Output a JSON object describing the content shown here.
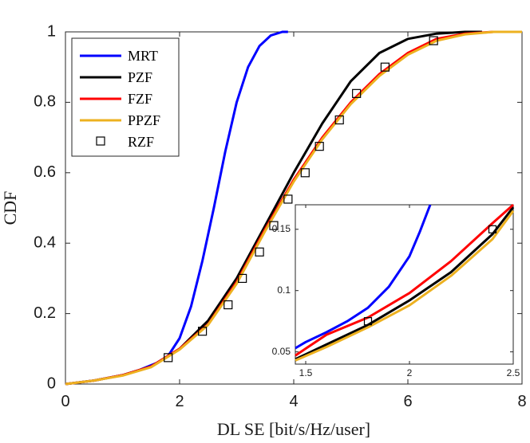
{
  "chart_data": {
    "type": "line",
    "xlabel": "DL SE [bit/s/Hz/user]",
    "ylabel": "CDF",
    "xlim": [
      0,
      8
    ],
    "ylim": [
      0,
      1
    ],
    "xticks": [
      "0",
      "2",
      "4",
      "6",
      "8"
    ],
    "yticks": [
      "0",
      "0.2",
      "0.4",
      "0.6",
      "0.8",
      "1"
    ],
    "grid": false,
    "legend_position": "top-left",
    "series": [
      {
        "name": "MRT",
        "color": "#0000ff",
        "x": [
          0,
          0.5,
          1.0,
          1.3,
          1.6,
          1.8,
          2.0,
          2.2,
          2.4,
          2.6,
          2.8,
          3.0,
          3.2,
          3.4,
          3.6,
          3.8,
          3.9
        ],
        "y": [
          0,
          0.01,
          0.025,
          0.04,
          0.06,
          0.08,
          0.13,
          0.22,
          0.35,
          0.5,
          0.66,
          0.8,
          0.9,
          0.96,
          0.99,
          1.0,
          1.0
        ]
      },
      {
        "name": "PZF",
        "color": "#000000",
        "x": [
          0,
          0.5,
          1.0,
          1.5,
          2.0,
          2.5,
          3.0,
          3.5,
          4.0,
          4.5,
          5.0,
          5.5,
          6.0,
          6.5,
          7.0,
          7.3
        ],
        "y": [
          0,
          0.01,
          0.025,
          0.05,
          0.1,
          0.18,
          0.3,
          0.45,
          0.6,
          0.74,
          0.86,
          0.94,
          0.98,
          0.995,
          1.0,
          1.0
        ]
      },
      {
        "name": "FZF",
        "color": "#ff0000",
        "x": [
          0,
          0.5,
          1.0,
          1.5,
          2.0,
          2.5,
          3.0,
          3.5,
          4.0,
          4.5,
          5.0,
          5.5,
          6.0,
          6.5,
          7.0,
          7.5,
          8.0
        ],
        "y": [
          0,
          0.01,
          0.025,
          0.05,
          0.1,
          0.17,
          0.29,
          0.44,
          0.58,
          0.7,
          0.8,
          0.88,
          0.94,
          0.98,
          0.995,
          1.0,
          1.0
        ]
      },
      {
        "name": "PPZF",
        "color": "#edb120",
        "x": [
          0,
          0.5,
          1.0,
          1.5,
          2.0,
          2.5,
          3.0,
          3.5,
          4.0,
          4.5,
          5.0,
          5.5,
          6.0,
          6.5,
          7.0,
          7.5,
          8.0
        ],
        "y": [
          0,
          0.01,
          0.024,
          0.048,
          0.098,
          0.168,
          0.285,
          0.435,
          0.575,
          0.695,
          0.795,
          0.875,
          0.935,
          0.975,
          0.993,
          1.0,
          1.0
        ]
      }
    ],
    "markers": {
      "name": "RZF",
      "symbol": "square",
      "color": "#000000",
      "points": [
        [
          1.8,
          0.075
        ],
        [
          2.4,
          0.15
        ],
        [
          2.85,
          0.225
        ],
        [
          3.1,
          0.3
        ],
        [
          3.4,
          0.375
        ],
        [
          3.65,
          0.45
        ],
        [
          3.9,
          0.525
        ],
        [
          4.2,
          0.6
        ],
        [
          4.45,
          0.675
        ],
        [
          4.8,
          0.75
        ],
        [
          5.1,
          0.825
        ],
        [
          5.6,
          0.9
        ],
        [
          6.45,
          0.975
        ]
      ]
    },
    "inset": {
      "xlim": [
        1.45,
        2.5
      ],
      "ylim": [
        0.04,
        0.17
      ],
      "xticks": [
        "1.5",
        "2",
        "2.5"
      ],
      "yticks": [
        "0.05",
        "0.1",
        "0.15"
      ],
      "series": [
        {
          "name": "MRT",
          "color": "#0000ff",
          "x": [
            1.45,
            1.5,
            1.6,
            1.7,
            1.8,
            1.9,
            2.0,
            2.05,
            2.1
          ],
          "y": [
            0.053,
            0.058,
            0.066,
            0.075,
            0.086,
            0.103,
            0.128,
            0.148,
            0.17
          ]
        },
        {
          "name": "PZF",
          "color": "#000000",
          "x": [
            1.45,
            1.6,
            1.8,
            2.0,
            2.2,
            2.4,
            2.5
          ],
          "y": [
            0.044,
            0.056,
            0.072,
            0.092,
            0.115,
            0.146,
            0.168
          ]
        },
        {
          "name": "FZF",
          "color": "#ff0000",
          "x": [
            1.45,
            1.6,
            1.8,
            2.0,
            2.2,
            2.4,
            2.5
          ],
          "y": [
            0.047,
            0.064,
            0.078,
            0.098,
            0.124,
            0.155,
            0.17
          ]
        },
        {
          "name": "PPZF",
          "color": "#edb120",
          "x": [
            1.45,
            1.6,
            1.8,
            2.0,
            2.2,
            2.4,
            2.5
          ],
          "y": [
            0.043,
            0.054,
            0.07,
            0.088,
            0.112,
            0.142,
            0.165
          ]
        }
      ],
      "markers": {
        "name": "RZF",
        "points": [
          [
            1.8,
            0.075
          ],
          [
            2.4,
            0.15
          ]
        ]
      }
    }
  }
}
